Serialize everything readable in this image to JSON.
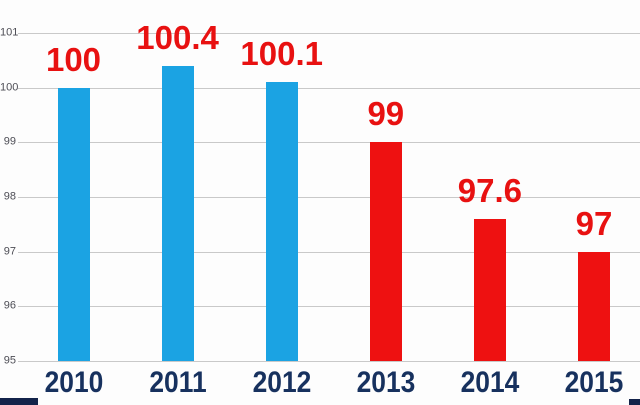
{
  "chart_data": {
    "type": "bar",
    "title": "",
    "xlabel": "",
    "ylabel": "",
    "categories": [
      "2010",
      "2011",
      "2012",
      "2013",
      "2014",
      "2015"
    ],
    "values": [
      100,
      100.4,
      100.1,
      99,
      97.6,
      97
    ],
    "value_labels": [
      "100",
      "100.4",
      "100.1",
      "99",
      "97.6",
      "97"
    ],
    "bar_colors": [
      "#1ba3e3",
      "#1ba3e3",
      "#1ba3e3",
      "#ee1111",
      "#ee1111",
      "#ee1111"
    ],
    "ylim": [
      95,
      101
    ],
    "yticks": [
      95,
      96,
      97,
      98,
      99,
      100,
      101
    ],
    "grid": true,
    "legend": "none"
  },
  "colors": {
    "background": "#fdfdfd",
    "gridline": "#c9c9c9",
    "y_tick_label": "#4d4d55",
    "value_label": "#e81111",
    "x_tick_label": "#17315e",
    "corner_band": "#13234a"
  }
}
